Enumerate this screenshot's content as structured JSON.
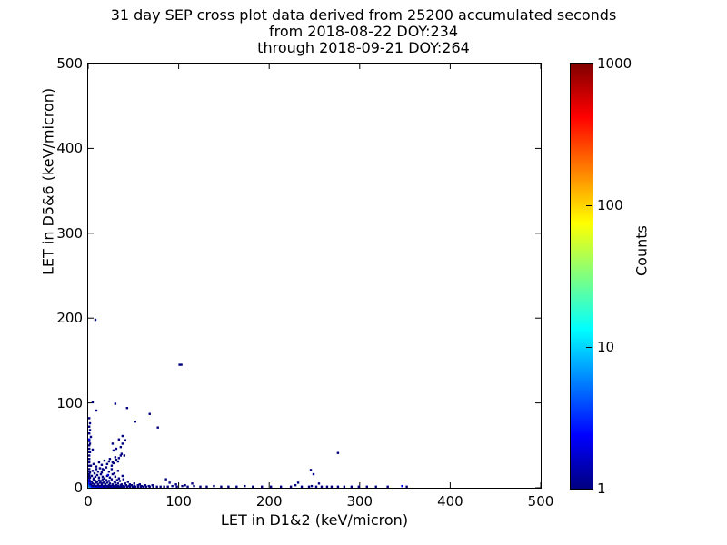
{
  "figure": {
    "title_line1": "31 day SEP cross plot data derived from 25200 accumulated seconds",
    "title_line2": "from 2018-08-22 DOY:234",
    "title_line3": "through 2018-09-21 DOY:264"
  },
  "axes": {
    "xlabel": "LET in D1&2 (keV/micron)",
    "ylabel": "LET in D5&6 (keV/micron)",
    "x_ticks": [
      0,
      100,
      200,
      300,
      400,
      500
    ],
    "y_ticks": [
      0,
      100,
      200,
      300,
      400,
      500
    ]
  },
  "colorbar": {
    "label": "Counts",
    "scale": "log",
    "min": 1,
    "max": 1000,
    "ticks": [
      1,
      10,
      100,
      1000
    ],
    "colormap": "jet",
    "gradient_stops": [
      "#000080 0%",
      "#0000ff 12.5%",
      "#00ffff 37.5%",
      "#ffff00 62.5%",
      "#ff0000 87.5%",
      "#800000 100%"
    ]
  },
  "chart_data": {
    "type": "scatter",
    "title": "31 day SEP cross plot data derived from 25200 accumulated seconds from 2018-08-22 DOY:234 through 2018-09-21 DOY:264",
    "xlabel": "LET in D1&2 (keV/micron)",
    "ylabel": "LET in D5&6 (keV/micron)",
    "xlim": [
      0,
      500
    ],
    "ylim": [
      0,
      500
    ],
    "grid": false,
    "colorbar_label": "Counts",
    "colorbar_range": [
      1,
      1000
    ],
    "colorbar_scale": "log",
    "point_color_low": "#000080",
    "point_color_origin": "#3cffc3",
    "points_format": "[x, y, counts]",
    "points": [
      [
        0,
        0,
        20
      ],
      [
        2,
        0,
        6
      ],
      [
        0,
        2,
        6
      ],
      [
        2,
        2,
        4
      ],
      [
        4,
        0,
        4
      ],
      [
        0,
        4,
        4
      ],
      [
        6,
        0,
        3
      ],
      [
        0,
        6,
        3
      ],
      [
        4,
        2,
        2
      ],
      [
        2,
        4,
        2
      ],
      [
        8,
        0,
        3
      ],
      [
        0,
        8,
        2
      ],
      [
        10,
        0,
        2
      ],
      [
        6,
        2,
        2
      ],
      [
        2,
        6,
        2
      ],
      [
        12,
        0,
        2
      ],
      [
        0,
        10,
        2
      ],
      [
        14,
        0,
        2
      ],
      [
        16,
        0,
        2
      ],
      [
        20,
        0,
        2
      ],
      [
        26,
        0,
        2
      ],
      [
        1,
        12,
        1
      ],
      [
        0,
        14,
        1
      ],
      [
        1,
        16,
        1
      ],
      [
        0,
        19,
        1
      ],
      [
        1,
        22,
        1
      ],
      [
        0,
        26,
        1
      ],
      [
        1,
        30,
        1
      ],
      [
        0,
        34,
        1
      ],
      [
        1,
        38,
        1
      ],
      [
        0,
        42,
        1
      ],
      [
        1,
        46,
        1
      ],
      [
        0,
        50,
        1
      ],
      [
        1,
        55,
        1
      ],
      [
        18,
        0,
        1
      ],
      [
        22,
        0,
        1
      ],
      [
        24,
        0,
        1
      ],
      [
        28,
        0,
        1
      ],
      [
        30,
        0,
        1
      ],
      [
        32,
        0,
        1
      ],
      [
        34,
        0,
        1
      ],
      [
        36,
        0,
        1
      ],
      [
        38,
        0,
        1
      ],
      [
        40,
        0,
        1
      ],
      [
        43,
        0,
        1
      ],
      [
        46,
        0,
        1
      ],
      [
        49,
        0,
        1
      ],
      [
        52,
        0,
        1
      ],
      [
        55,
        0,
        1
      ],
      [
        58,
        0,
        1
      ],
      [
        61,
        0,
        1
      ],
      [
        64,
        0,
        1
      ],
      [
        68,
        0,
        1
      ],
      [
        72,
        0,
        1
      ],
      [
        76,
        0,
        1
      ],
      [
        80,
        0,
        1
      ],
      [
        84,
        0,
        1
      ],
      [
        5,
        2,
        1
      ],
      [
        7,
        3,
        1
      ],
      [
        9,
        2,
        1
      ],
      [
        11,
        3,
        1
      ],
      [
        13,
        2,
        1
      ],
      [
        15,
        3,
        1
      ],
      [
        17,
        2,
        1
      ],
      [
        19,
        3,
        1
      ],
      [
        21,
        2,
        1
      ],
      [
        23,
        3,
        1
      ],
      [
        25,
        2,
        1
      ],
      [
        27,
        3,
        1
      ],
      [
        29,
        2,
        1
      ],
      [
        31,
        3,
        1
      ],
      [
        33,
        2,
        1
      ],
      [
        36,
        3,
        1
      ],
      [
        39,
        2,
        1
      ],
      [
        42,
        3,
        1
      ],
      [
        45,
        2,
        1
      ],
      [
        48,
        3,
        1
      ],
      [
        51,
        2,
        1
      ],
      [
        55,
        3,
        1
      ],
      [
        59,
        2,
        1
      ],
      [
        63,
        3,
        1
      ],
      [
        67,
        2,
        1
      ],
      [
        71,
        3,
        1
      ],
      [
        3,
        4,
        1
      ],
      [
        5,
        5,
        1
      ],
      [
        7,
        4,
        1
      ],
      [
        9,
        6,
        1
      ],
      [
        11,
        4,
        1
      ],
      [
        13,
        6,
        1
      ],
      [
        15,
        5,
        1
      ],
      [
        17,
        6,
        1
      ],
      [
        19,
        4,
        1
      ],
      [
        21,
        6,
        1
      ],
      [
        24,
        5,
        1
      ],
      [
        27,
        4,
        1
      ],
      [
        30,
        6,
        1
      ],
      [
        33,
        5,
        1
      ],
      [
        37,
        4,
        1
      ],
      [
        41,
        5,
        1
      ],
      [
        46,
        4,
        1
      ],
      [
        51,
        5,
        1
      ],
      [
        57,
        4,
        1
      ],
      [
        2,
        8,
        1
      ],
      [
        4,
        7,
        1
      ],
      [
        6,
        9,
        1
      ],
      [
        8,
        8,
        1
      ],
      [
        10,
        7,
        1
      ],
      [
        12,
        9,
        1
      ],
      [
        14,
        8,
        1
      ],
      [
        16,
        10,
        1
      ],
      [
        18,
        7,
        1
      ],
      [
        20,
        9,
        1
      ],
      [
        23,
        8,
        1
      ],
      [
        26,
        10,
        1
      ],
      [
        29,
        7,
        1
      ],
      [
        32,
        9,
        1
      ],
      [
        35,
        8,
        1
      ],
      [
        39,
        10,
        1
      ],
      [
        44,
        7,
        1
      ],
      [
        2,
        12,
        1
      ],
      [
        4,
        14,
        1
      ],
      [
        6,
        11,
        1
      ],
      [
        8,
        13,
        1
      ],
      [
        10,
        15,
        1
      ],
      [
        12,
        12,
        1
      ],
      [
        14,
        16,
        1
      ],
      [
        16,
        13,
        1
      ],
      [
        18,
        11,
        1
      ],
      [
        21,
        14,
        1
      ],
      [
        24,
        12,
        1
      ],
      [
        22,
        15,
        2
      ],
      [
        27,
        16,
        1
      ],
      [
        30,
        13,
        1
      ],
      [
        34,
        11,
        1
      ],
      [
        38,
        14,
        1
      ],
      [
        2,
        18,
        1
      ],
      [
        5,
        20,
        1
      ],
      [
        7,
        17,
        1
      ],
      [
        9,
        22,
        1
      ],
      [
        11,
        19,
        1
      ],
      [
        13,
        23,
        1
      ],
      [
        15,
        18,
        1
      ],
      [
        17,
        21,
        1
      ],
      [
        20,
        24,
        1
      ],
      [
        23,
        19,
        1
      ],
      [
        26,
        22,
        1
      ],
      [
        29,
        17,
        1
      ],
      [
        33,
        20,
        1
      ],
      [
        16,
        22,
        1
      ],
      [
        3,
        26,
        1
      ],
      [
        6,
        28,
        1
      ],
      [
        9,
        25,
        1
      ],
      [
        12,
        30,
        1
      ],
      [
        15,
        27,
        1
      ],
      [
        18,
        32,
        1
      ],
      [
        21,
        28,
        1
      ],
      [
        24,
        34,
        1
      ],
      [
        27,
        30,
        1
      ],
      [
        30,
        36,
        1
      ],
      [
        33,
        31,
        1
      ],
      [
        36,
        38,
        1
      ],
      [
        26,
        26,
        1
      ],
      [
        28,
        29,
        1
      ],
      [
        31,
        33,
        1
      ],
      [
        34,
        35,
        1
      ],
      [
        37,
        40,
        1
      ],
      [
        40,
        38,
        1
      ],
      [
        23,
        31,
        1
      ],
      [
        2,
        42,
        1
      ],
      [
        5,
        45,
        1
      ],
      [
        28,
        44,
        1
      ],
      [
        36,
        48,
        1
      ],
      [
        31,
        46,
        1
      ],
      [
        38,
        52,
        1
      ],
      [
        27,
        52,
        1
      ],
      [
        2,
        52,
        1
      ],
      [
        1,
        57,
        2
      ],
      [
        3,
        60,
        1
      ],
      [
        38,
        61,
        1
      ],
      [
        41,
        56,
        1
      ],
      [
        34,
        57,
        1
      ],
      [
        1,
        64,
        1
      ],
      [
        2,
        68,
        1
      ],
      [
        1,
        72,
        1
      ],
      [
        2,
        76,
        1
      ],
      [
        1,
        82,
        1
      ],
      [
        9,
        91,
        1
      ],
      [
        5,
        101,
        1
      ],
      [
        30,
        99,
        1
      ],
      [
        43,
        94,
        1
      ],
      [
        68,
        87,
        1
      ],
      [
        77,
        71,
        1
      ],
      [
        52,
        78,
        1
      ],
      [
        8,
        198,
        1
      ],
      [
        101,
        145,
        1
      ],
      [
        103,
        145,
        1
      ],
      [
        88,
        1,
        1
      ],
      [
        93,
        2,
        1
      ],
      [
        98,
        1,
        1
      ],
      [
        104,
        2,
        1
      ],
      [
        110,
        1,
        1
      ],
      [
        117,
        2,
        1
      ],
      [
        124,
        1,
        1
      ],
      [
        131,
        1,
        1
      ],
      [
        139,
        2,
        1
      ],
      [
        147,
        1,
        1
      ],
      [
        155,
        1,
        1
      ],
      [
        164,
        1,
        1
      ],
      [
        173,
        2,
        1
      ],
      [
        182,
        1,
        1
      ],
      [
        192,
        1,
        1
      ],
      [
        202,
        1,
        1
      ],
      [
        213,
        1,
        1
      ],
      [
        224,
        1,
        1
      ],
      [
        236,
        1,
        1
      ],
      [
        244,
        1,
        1
      ],
      [
        252,
        1,
        1
      ],
      [
        258,
        1,
        1
      ],
      [
        264,
        1,
        1
      ],
      [
        269,
        1,
        1
      ],
      [
        276,
        1,
        1
      ],
      [
        283,
        1,
        1
      ],
      [
        291,
        1,
        1
      ],
      [
        299,
        1,
        1
      ],
      [
        308,
        1,
        1
      ],
      [
        318,
        1,
        1
      ],
      [
        331,
        1,
        1
      ],
      [
        352,
        1,
        1
      ],
      [
        229,
        3,
        1
      ],
      [
        247,
        2,
        1
      ],
      [
        232,
        6,
        1
      ],
      [
        255,
        5,
        1
      ],
      [
        347,
        2,
        2
      ],
      [
        276,
        41,
        1
      ],
      [
        249,
        16,
        1
      ],
      [
        246,
        21,
        1
      ],
      [
        90,
        6,
        1
      ],
      [
        97,
        4,
        1
      ],
      [
        86,
        10,
        1
      ],
      [
        107,
        3,
        1
      ],
      [
        115,
        5,
        1
      ]
    ]
  }
}
